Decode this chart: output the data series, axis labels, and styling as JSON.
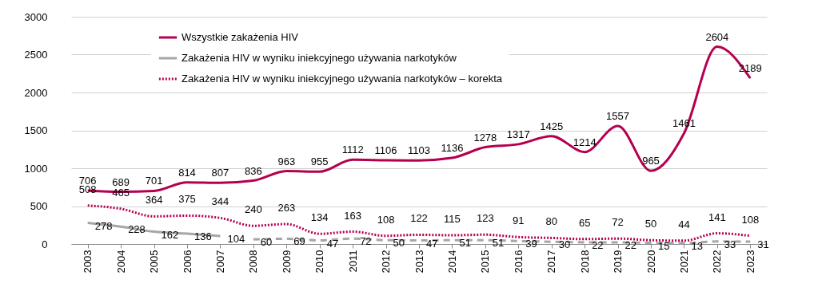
{
  "chart_data": {
    "type": "line",
    "categories": [
      "2003",
      "2004",
      "2005",
      "2006",
      "2007",
      "2008",
      "2009",
      "2010",
      "2011",
      "2012",
      "2013",
      "2014",
      "2015",
      "2016",
      "2017",
      "2018",
      "2019",
      "2020",
      "2021",
      "2022",
      "2023"
    ],
    "series": [
      {
        "name": "Wszystkie zakażenia HIV",
        "color": "#b5004f",
        "line_style": "solid",
        "values": [
          706,
          689,
          701,
          814,
          807,
          836,
          963,
          955,
          1112,
          1106,
          1103,
          1136,
          1278,
          1317,
          1425,
          1214,
          1557,
          965,
          1461,
          2604,
          2189
        ]
      },
      {
        "name": "Zakażenia HIV w wyniku iniekcyjnego używania narkotyków",
        "color": "#a6a6a6",
        "line_style": "solid",
        "values": [
          278,
          228,
          162,
          136,
          104,
          null,
          null,
          null,
          null,
          null,
          null,
          null,
          null,
          null,
          null,
          null,
          null,
          null,
          null,
          null,
          null
        ]
      },
      {
        "color": "#a6a6a6",
        "line_style": "dashed",
        "values": [
          null,
          null,
          null,
          null,
          null,
          60,
          69,
          47,
          72,
          50,
          47,
          51,
          51,
          39,
          30,
          22,
          22,
          15,
          13,
          33,
          31
        ]
      },
      {
        "name": "Zakażenia HIV w wyniku iniekcyjnego używania narkotyków – korekta",
        "color": "#b5004f",
        "line_style": "dotted",
        "values": [
          508,
          465,
          364,
          375,
          344,
          240,
          263,
          134,
          163,
          108,
          122,
          115,
          123,
          91,
          80,
          65,
          72,
          50,
          44,
          141,
          108
        ]
      }
    ],
    "ylim": [
      0,
      3000
    ],
    "yticks": [
      0,
      500,
      1000,
      1500,
      2000,
      2500,
      3000
    ],
    "grid": "y",
    "legend": "top left",
    "data_labels": true,
    "marker": "none"
  }
}
